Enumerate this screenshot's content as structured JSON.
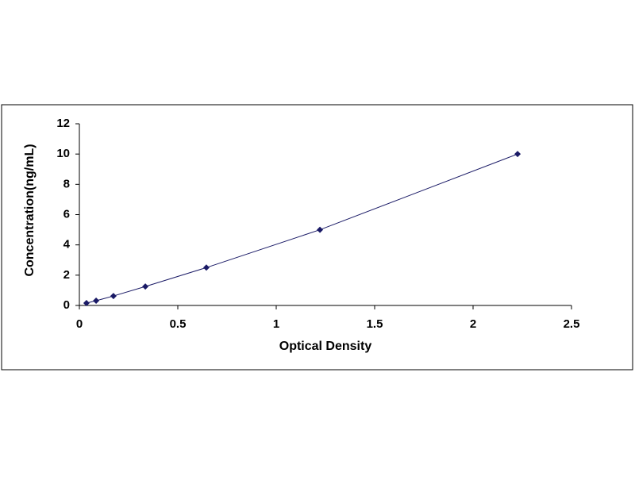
{
  "chart_data": {
    "type": "scatter",
    "x_label": "Optical Density",
    "y_label": "Concentration(ng/mL)",
    "series": [
      {
        "color": "#1a1a66",
        "x": [
          0.036,
          0.085,
          0.173,
          0.335,
          0.645,
          1.222,
          2.226
        ],
        "values": [
          0.156,
          0.312,
          0.625,
          1.25,
          2.5,
          5,
          10
        ]
      }
    ],
    "xlim": [
      0,
      2.5
    ],
    "xticks": [
      0,
      0.5,
      1,
      1.5,
      2,
      2.5
    ],
    "ylim": [
      0,
      12
    ],
    "yticks": [
      0,
      2,
      4,
      6,
      8,
      10,
      12
    ],
    "grid": false,
    "line": true
  }
}
